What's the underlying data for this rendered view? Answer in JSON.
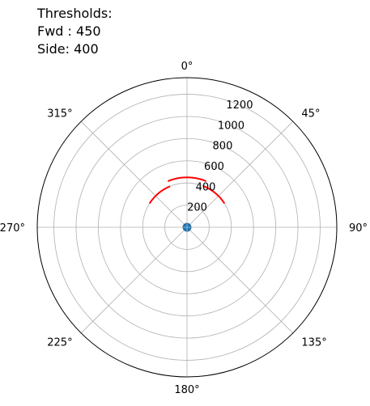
{
  "title_lines": [
    "Thresholds:",
    "Fwd : 450",
    "Side: 400"
  ],
  "chart_data": {
    "type": "polar",
    "theta_direction": "clockwise",
    "theta_zero": "top",
    "angle_ticks": [
      {
        "deg": 0,
        "label": "0°"
      },
      {
        "deg": 45,
        "label": "45°"
      },
      {
        "deg": 90,
        "label": "90°"
      },
      {
        "deg": 135,
        "label": "135°"
      },
      {
        "deg": 180,
        "label": "180°"
      },
      {
        "deg": 225,
        "label": "225°"
      },
      {
        "deg": 270,
        "label": "270°"
      },
      {
        "deg": 315,
        "label": "315°"
      }
    ],
    "radial_ticks": [
      200,
      400,
      600,
      800,
      1000,
      1200
    ],
    "rlim": [
      0,
      1350
    ],
    "grid": true,
    "threshold_arcs": [
      {
        "theta_start": -22.5,
        "theta_end": 22.5,
        "r": 450,
        "color": "#ff0000"
      },
      {
        "theta_start": -57.5,
        "theta_end": -22.5,
        "r": 400,
        "color": "#ff0000"
      },
      {
        "theta_start": 22.5,
        "theta_end": 57.5,
        "r": 400,
        "color": "#ff0000"
      }
    ],
    "points": [
      {
        "theta": 0,
        "r": 0,
        "color": "#1f77b4"
      }
    ]
  }
}
